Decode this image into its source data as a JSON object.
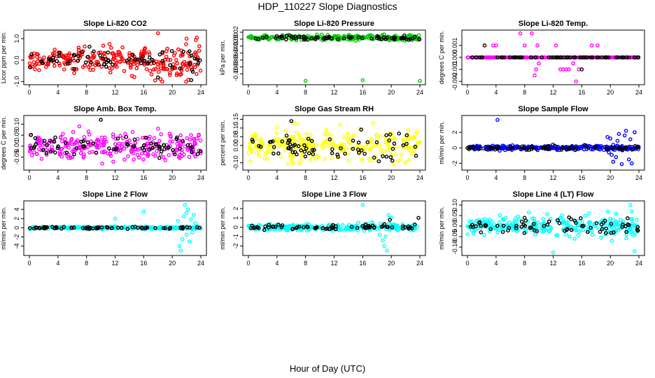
{
  "title": "HDP_110227  Slope Diagnostics",
  "xlabel": "Hour of Day (UTC)",
  "chart_data": [
    {
      "type": "scatter",
      "title": "Slope Li-820 CO2",
      "ylabel": "Licor ppm per min.",
      "color": "#ff0000",
      "xlim": [
        0,
        24
      ],
      "xticks": [
        0,
        4,
        8,
        12,
        16,
        20,
        24
      ],
      "ylim": [
        -1.05,
        1.3
      ],
      "yticks": [
        -1.0,
        0.0,
        1.0
      ],
      "ytick_labels": [
        "-1.0",
        "0.0",
        "1.0"
      ],
      "band": 0.35,
      "amp_growth": 1.4,
      "outliers": [
        [
          18,
          1.25
        ],
        [
          17.6,
          -0.95
        ],
        [
          18.6,
          -1.0
        ],
        [
          20.6,
          -0.7
        ],
        [
          22,
          1.0
        ],
        [
          23.4,
          -0.65
        ]
      ]
    },
    {
      "type": "scatter",
      "title": "Slope Li-820 Pressure",
      "ylabel": "kPa per min.",
      "color": "#00cc00",
      "xlim": [
        0,
        24
      ],
      "xticks": [
        0,
        4,
        8,
        12,
        16,
        20,
        24
      ],
      "ylim": [
        -0.125,
        0.02
      ],
      "yticks": [
        -0.1,
        -0.08,
        -0.06,
        -0.04,
        -0.02,
        0,
        0.02
      ],
      "ytick_labels": [
        "-0.10",
        "-0.08",
        "-0.06",
        "-0.04",
        "-0.02",
        "0.00",
        "0.02"
      ],
      "center": 0.004,
      "band": 0.006,
      "amp_growth": 0.3,
      "outliers": [
        [
          8,
          -0.12
        ],
        [
          16,
          -0.118
        ],
        [
          24,
          -0.12
        ]
      ]
    },
    {
      "type": "scatter",
      "title": "Slope Li-820 Temp.",
      "ylabel": "degrees C per min.",
      "color": "#ff00ff",
      "xlim": [
        0,
        24
      ],
      "xticks": [
        0,
        4,
        8,
        12,
        16,
        20,
        24
      ],
      "ylim": [
        -0.0021,
        0.0021
      ],
      "yticks": [
        -0.002,
        -0.001,
        0,
        0.001
      ],
      "ytick_labels": [
        "-0.002",
        "-0.001",
        "0.000",
        "0.001"
      ],
      "band": 0,
      "amp_growth": 0,
      "outliers": [
        [
          3.6,
          0.001
        ],
        [
          4.0,
          0.001
        ],
        [
          7.4,
          0.002
        ],
        [
          9.0,
          0.002
        ],
        [
          9.6,
          -0.001
        ],
        [
          9.8,
          0.001
        ],
        [
          10.0,
          -0.0005
        ],
        [
          9.4,
          -0.0015
        ],
        [
          12.4,
          0.001
        ],
        [
          13.0,
          -0.001
        ],
        [
          13.4,
          -0.001
        ],
        [
          13.8,
          -0.001
        ],
        [
          14.2,
          -0.001
        ],
        [
          15.6,
          -0.001
        ],
        [
          14.8,
          -0.0005
        ],
        [
          17.4,
          0.001
        ],
        [
          18.2,
          0.001
        ],
        [
          15.2,
          -0.002
        ],
        [
          8.0,
          0.001
        ]
      ],
      "black_outliers": [
        [
          2.4,
          0.001
        ],
        [
          16.0,
          -0.001
        ]
      ]
    },
    {
      "type": "scatter",
      "title": "Slope Amb. Box Temp.",
      "ylabel": "degrees C per min.",
      "color": "#ff00ff",
      "xlim": [
        0,
        24
      ],
      "xticks": [
        0,
        4,
        8,
        12,
        16,
        20,
        24
      ],
      "ylim": [
        -0.1,
        0.13
      ],
      "yticks": [
        -0.05,
        0,
        0.05,
        0.1
      ],
      "ytick_labels": [
        "-0.05",
        "0.00",
        "0.05",
        "0.10"
      ],
      "band": 0.05,
      "amp_growth": 0.2,
      "outliers": [
        [
          7.0,
          0.09
        ],
        [
          10.2,
          -0.08
        ],
        [
          18.0,
          0.08
        ]
      ],
      "black_outliers": [
        [
          10.0,
          0.12
        ]
      ]
    },
    {
      "type": "scatter",
      "title": "Slope Gas Stream RH",
      "ylabel": "percent per min.",
      "color": "#ffff00",
      "xlim": [
        0,
        24
      ],
      "xticks": [
        0,
        4,
        8,
        12,
        16,
        20,
        24
      ],
      "ylim": [
        -0.13,
        0.16
      ],
      "yticks": [
        -0.1,
        0,
        0.05,
        0.1,
        0.15
      ],
      "ytick_labels": [
        "-0.10",
        "0.00",
        "0.05",
        "0.10",
        "0.15"
      ],
      "band": 0.07,
      "amp_growth": 0.3,
      "outliers": [
        [
          6.4,
          0.13
        ],
        [
          12.8,
          0.12
        ],
        [
          22,
          -0.1
        ]
      ],
      "black_outliers": [
        [
          6.0,
          0.14
        ]
      ]
    },
    {
      "type": "scatter",
      "title": "Slope Sample Flow",
      "ylabel": "ml/min per min.",
      "color": "#0000ff",
      "xlim": [
        0,
        24
      ],
      "xticks": [
        0,
        4,
        8,
        12,
        16,
        20,
        24
      ],
      "ylim": [
        -2.6,
        3.9
      ],
      "yticks": [
        -2,
        0,
        2
      ],
      "ytick_labels": [
        "-2",
        "0",
        "2"
      ],
      "band": 0.25,
      "amp_growth": 0.2,
      "outliers": [
        [
          4.2,
          3.6
        ],
        [
          19.6,
          1.4
        ],
        [
          20.2,
          -0.9
        ],
        [
          20.4,
          -1.8
        ],
        [
          20.8,
          -1.2
        ],
        [
          21.2,
          1.8
        ],
        [
          21.6,
          -2.1
        ],
        [
          22.0,
          1.6
        ],
        [
          22.2,
          2.2
        ],
        [
          22.6,
          -1.5
        ],
        [
          23.0,
          -2.0
        ],
        [
          23.4,
          2.0
        ],
        [
          20.0,
          1.2
        ],
        [
          21.0,
          0.9
        ],
        [
          22.8,
          1.1
        ],
        [
          19.8,
          -0.6
        ]
      ]
    },
    {
      "type": "scatter",
      "title": "Slope Line 2 Flow",
      "ylabel": "ml/min per min.",
      "color": "#00ffff",
      "xlim": [
        0,
        24
      ],
      "xticks": [
        0,
        4,
        8,
        12,
        16,
        20,
        24
      ],
      "ylim": [
        -5.6,
        5.4
      ],
      "yticks": [
        -4,
        -2,
        0,
        2,
        4
      ],
      "ytick_labels": [
        "-4",
        "-2",
        "0",
        "2",
        "4"
      ],
      "band": 0.25,
      "amp_growth": 0.1,
      "outliers": [
        [
          16.0,
          3.5
        ],
        [
          21.0,
          -4.0
        ],
        [
          21.2,
          -5.0
        ],
        [
          21.4,
          -2.5
        ],
        [
          21.6,
          2.5
        ],
        [
          21.8,
          5.0
        ],
        [
          22.0,
          -1.5
        ],
        [
          22.2,
          4.0
        ],
        [
          22.4,
          -3.0
        ],
        [
          22.6,
          1.8
        ],
        [
          22.8,
          -1.0
        ],
        [
          23.0,
          2.8
        ],
        [
          23.2,
          1.0
        ],
        [
          12.0,
          2.0
        ],
        [
          20.8,
          1.5
        ],
        [
          22.0,
          3.2
        ]
      ]
    },
    {
      "type": "scatter",
      "title": "Slope Line 3 Flow",
      "ylabel": "ml/min per min.",
      "color": "#00ffff",
      "xlim": [
        0,
        24
      ],
      "xticks": [
        0,
        4,
        8,
        12,
        16,
        20,
        24
      ],
      "ylim": [
        -2.8,
        2.6
      ],
      "yticks": [
        -2,
        -1,
        0,
        1,
        2
      ],
      "ytick_labels": [
        "-2",
        "-1",
        "0",
        "1",
        "2"
      ],
      "band": 0.28,
      "amp_growth": 0.25,
      "outliers": [
        [
          16.0,
          2.4
        ],
        [
          18.8,
          -1.4
        ],
        [
          19.0,
          -2.0
        ],
        [
          19.2,
          -1.0
        ],
        [
          18.4,
          -0.8
        ],
        [
          19.6,
          1.3
        ],
        [
          20.0,
          1.0
        ],
        [
          19.4,
          -2.5
        ]
      ],
      "black_outliers": [
        [
          23.8,
          1.0
        ],
        [
          19.8,
          0.8
        ]
      ]
    },
    {
      "type": "scatter",
      "title": "Slope Line 4 (LT) Flow",
      "ylabel": "ml/min per min.",
      "color": "#00ffff",
      "xlim": [
        0,
        24
      ],
      "xticks": [
        0,
        4,
        8,
        12,
        16,
        20,
        24
      ],
      "ylim": [
        -0.13,
        0.11
      ],
      "yticks": [
        -0.1,
        -0.05,
        0,
        0.05,
        0.1
      ],
      "ytick_labels": [
        "-0.10",
        "-0.05",
        "0.00",
        "0.05",
        "0.10"
      ],
      "band": 0.035,
      "amp_growth": 0.4,
      "outliers": [
        [
          12.0,
          -0.125
        ],
        [
          17.0,
          0.06
        ],
        [
          22.8,
          0.1
        ],
        [
          23.4,
          -0.12
        ],
        [
          20.2,
          -0.07
        ],
        [
          15.0,
          -0.06
        ],
        [
          23.0,
          0.07
        ]
      ]
    }
  ]
}
